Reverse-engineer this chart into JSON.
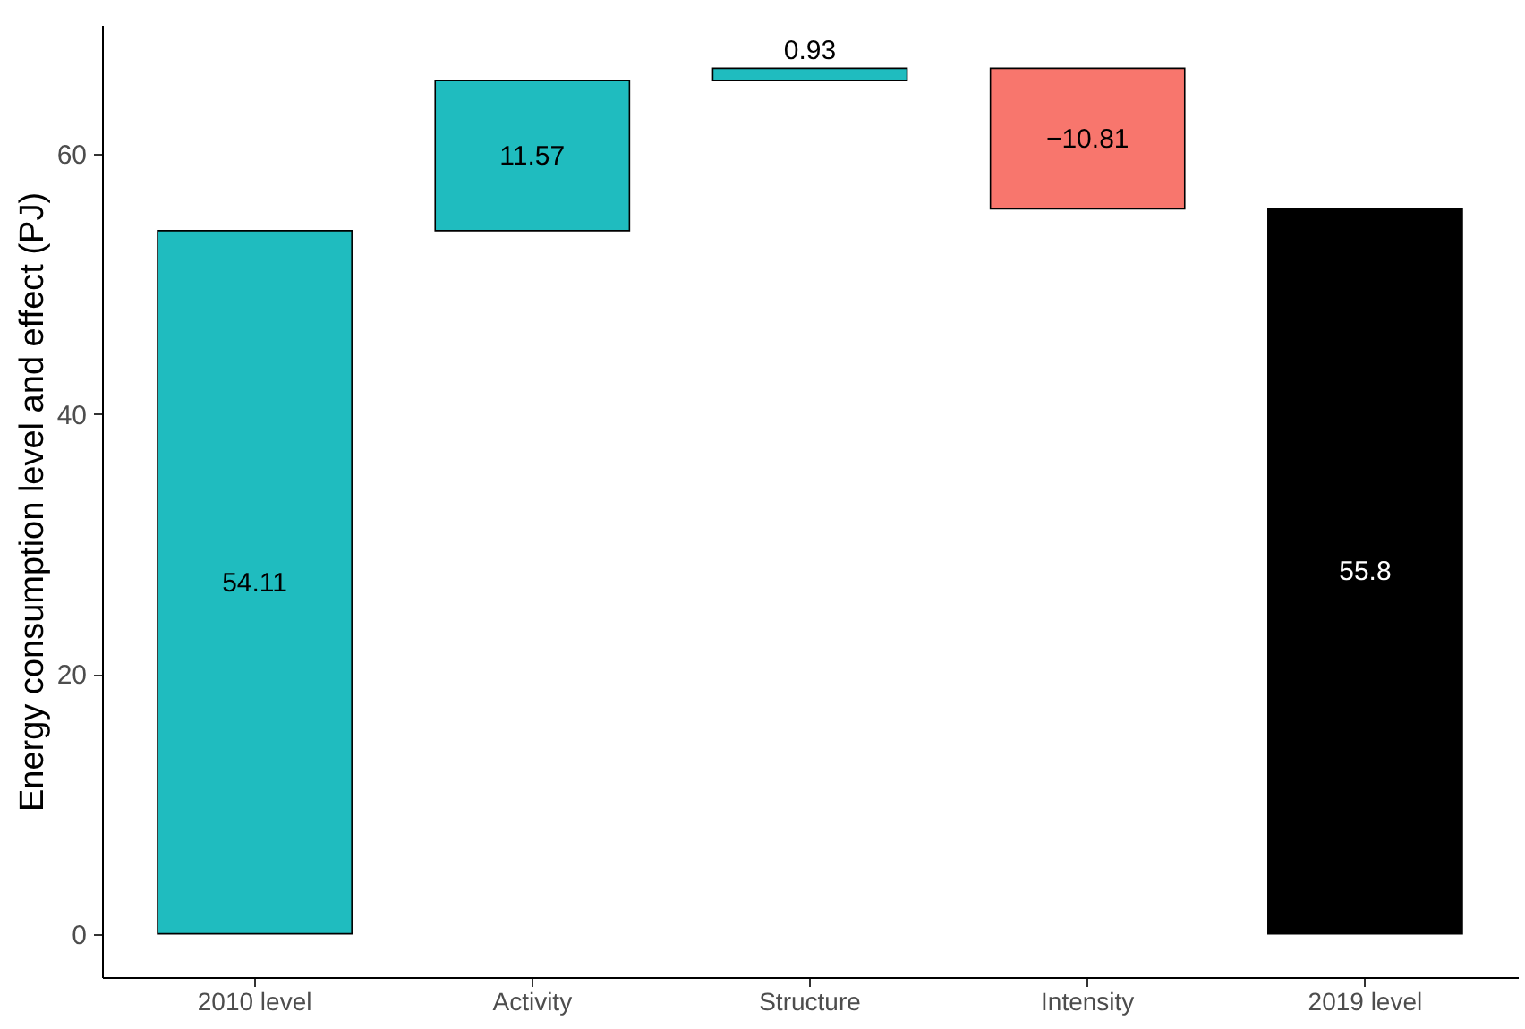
{
  "chart_data": {
    "type": "bar",
    "ylabel": "Energy consumption level and effect (PJ)",
    "categories": [
      "2010 level",
      "Activity",
      "Structure",
      "Intensity",
      "2019 level"
    ],
    "values": [
      54.11,
      11.57,
      0.93,
      -10.81,
      55.8
    ],
    "base": [
      0,
      54.11,
      65.68,
      66.61,
      0
    ],
    "colors": [
      "#1fbcbf",
      "#1fbcbf",
      "#1fbcbf",
      "#f8766d",
      "#000000"
    ],
    "ylim": [
      -3.33,
      69.94
    ],
    "yticks": [
      0,
      20,
      40,
      60
    ],
    "grid": false,
    "data_labels": true
  }
}
